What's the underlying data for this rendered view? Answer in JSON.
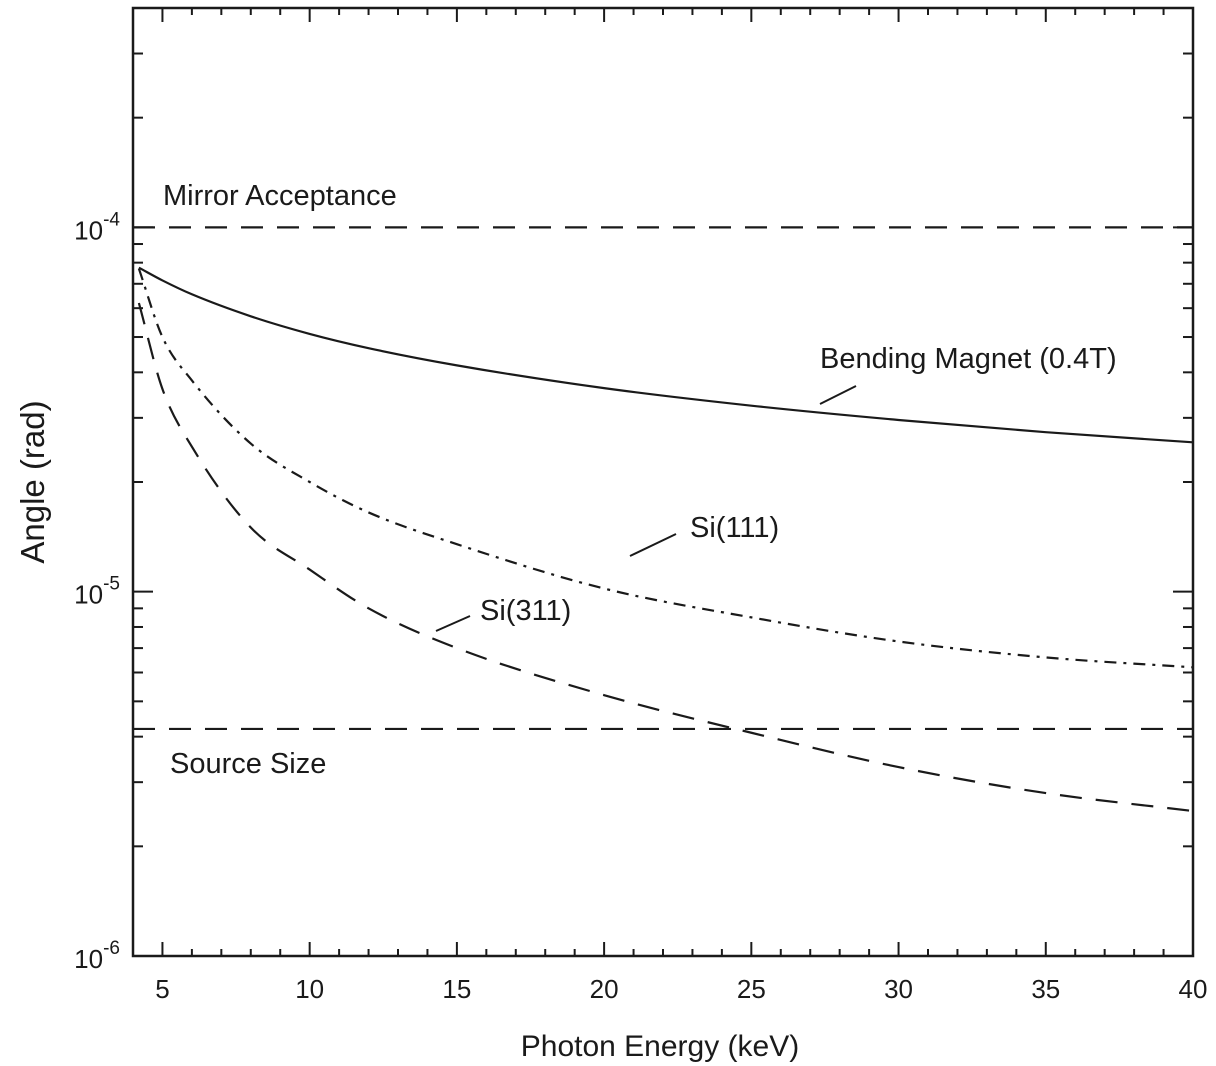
{
  "chart_data": {
    "type": "line",
    "title": "",
    "xlabel": "Photon Energy (keV)",
    "ylabel": "Angle (rad)",
    "xlim": [
      4,
      40
    ],
    "ylim": [
      1e-06,
      0.0004
    ],
    "yscale": "log",
    "grid": false,
    "xticks": [
      5,
      10,
      15,
      20,
      25,
      30,
      35,
      40
    ],
    "xtick_labels": [
      "5",
      "10",
      "15",
      "20",
      "25",
      "30",
      "35",
      "40"
    ],
    "yticks": [
      {
        "value": 0.0001,
        "base": "10",
        "exp": "-4"
      },
      {
        "value": 1e-05,
        "base": "10",
        "exp": "-5"
      },
      {
        "value": 1e-06,
        "base": "10",
        "exp": "-6"
      }
    ],
    "series": [
      {
        "name": "Bending Magnet (0.4T)",
        "style": "solid",
        "x": [
          4.2,
          5,
          6,
          8,
          10,
          12,
          15,
          20,
          25,
          30,
          35,
          40
        ],
        "y": [
          7.75e-05,
          7.15e-05,
          6.55e-05,
          5.7e-05,
          5.1e-05,
          4.66e-05,
          4.18e-05,
          3.62e-05,
          3.24e-05,
          2.96e-05,
          2.74e-05,
          2.57e-05
        ]
      },
      {
        "name": "Si(111)",
        "style": "dashdot",
        "x": [
          4.2,
          5,
          6,
          8,
          10,
          12,
          15,
          20,
          25,
          30,
          35,
          40
        ],
        "y": [
          7.7e-05,
          5e-05,
          3.8e-05,
          2.55e-05,
          2e-05,
          1.65e-05,
          1.35e-05,
          1.02e-05,
          8.5e-06,
          7.3e-06,
          6.6e-06,
          6.2e-06
        ]
      },
      {
        "name": "Si(311)",
        "style": "dashed",
        "x": [
          4.2,
          5,
          6,
          8,
          10,
          12,
          15,
          20,
          25,
          30,
          35,
          40
        ],
        "y": [
          6.2e-05,
          3.6e-05,
          2.5e-05,
          1.5e-05,
          1.15e-05,
          9e-06,
          7e-06,
          5.2e-06,
          4.1e-06,
          3.3e-06,
          2.8e-06,
          2.5e-06
        ]
      }
    ],
    "reference_lines": [
      {
        "name": "Mirror Acceptance",
        "y": 0.0001,
        "style": "dashed"
      },
      {
        "name": "Source Size",
        "y": 4.2e-06,
        "style": "dashed"
      }
    ]
  }
}
